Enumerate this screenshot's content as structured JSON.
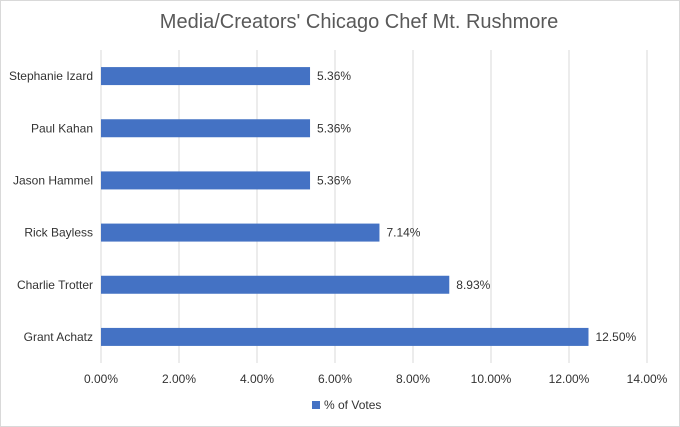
{
  "chart_data": {
    "type": "bar",
    "orientation": "horizontal",
    "title": "Media/Creators' Chicago Chef Mt. Rushmore",
    "categories": [
      "Stephanie Izard",
      "Paul Kahan",
      "Jason Hammel",
      "Rick Bayless",
      "Charlie Trotter",
      "Grant Achatz"
    ],
    "series": [
      {
        "name": "% of Votes",
        "values": [
          5.36,
          5.36,
          5.36,
          7.14,
          8.93,
          12.5
        ],
        "labels": [
          "5.36%",
          "5.36%",
          "5.36%",
          "7.14%",
          "8.93%",
          "12.50%"
        ],
        "color": "#4472c4"
      }
    ],
    "xlim": [
      0,
      14
    ],
    "xticks": [
      0,
      2,
      4,
      6,
      8,
      10,
      12,
      14
    ],
    "xtick_labels": [
      "0.00%",
      "2.00%",
      "4.00%",
      "6.00%",
      "8.00%",
      "10.00%",
      "12.00%",
      "14.00%"
    ],
    "grid": "vertical",
    "legend": "bottom-center",
    "xlabel": "",
    "ylabel": ""
  }
}
